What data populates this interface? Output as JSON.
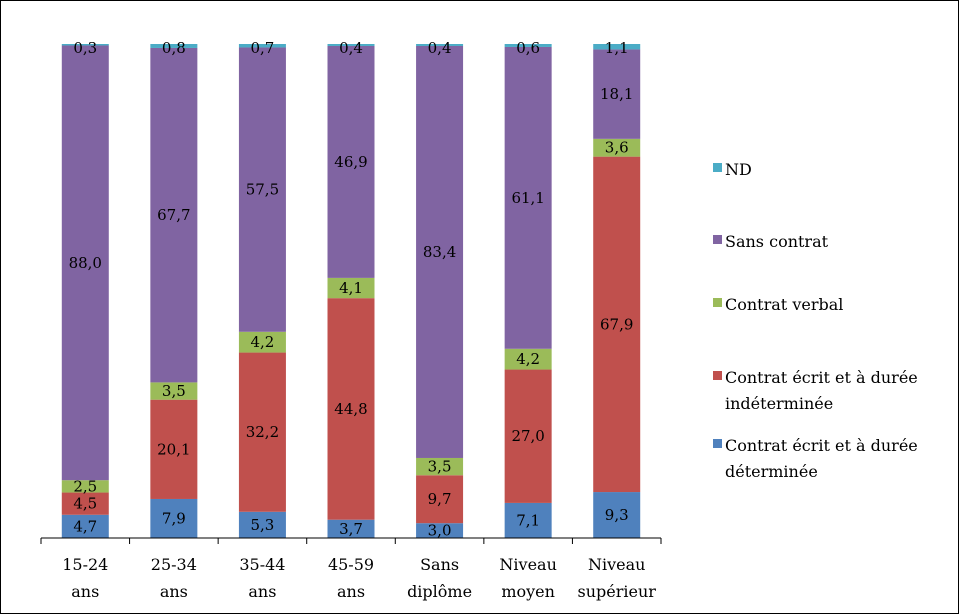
{
  "chart_data": {
    "type": "bar",
    "stacked": true,
    "percent": true,
    "title": "",
    "xlabel": "",
    "ylabel": "",
    "ylim": [
      0,
      100
    ],
    "grid": false,
    "legend_position": "right",
    "categories": [
      [
        "15-24",
        "ans"
      ],
      [
        "25-34",
        "ans"
      ],
      [
        "35-44",
        "ans"
      ],
      [
        "45-59",
        "ans"
      ],
      [
        "Sans",
        "diplôme"
      ],
      [
        "Niveau",
        "moyen"
      ],
      [
        "Niveau",
        "supérieur"
      ]
    ],
    "series": [
      {
        "name": "Contrat écrit et à durée déterminée",
        "legend_lines": [
          "Contrat écrit et à durée",
          "déterminée"
        ],
        "color": "#4F81BD",
        "values": [
          4.7,
          7.9,
          5.3,
          3.7,
          3.0,
          7.1,
          9.3
        ],
        "labels": [
          "4,7",
          "7,9",
          "5,3",
          "3,7",
          "3,0",
          "7,1",
          "9,3"
        ]
      },
      {
        "name": "Contrat écrit et à durée indéterminée",
        "legend_lines": [
          "Contrat écrit et à durée",
          "indéterminée"
        ],
        "color": "#C0504D",
        "values": [
          4.5,
          20.1,
          32.2,
          44.8,
          9.7,
          27.0,
          67.9
        ],
        "labels": [
          "4,5",
          "20,1",
          "32,2",
          "44,8",
          "9,7",
          "27,0",
          "67,9"
        ]
      },
      {
        "name": "Contrat verbal",
        "legend_lines": [
          "Contrat verbal"
        ],
        "color": "#9BBB59",
        "values": [
          2.5,
          3.5,
          4.2,
          4.1,
          3.5,
          4.2,
          3.6
        ],
        "labels": [
          "2,5",
          "3,5",
          "4,2",
          "4,1",
          "3,5",
          "4,2",
          "3,6"
        ]
      },
      {
        "name": "Sans contrat",
        "legend_lines": [
          "Sans contrat"
        ],
        "color": "#8064A2",
        "values": [
          88.0,
          67.7,
          57.5,
          46.9,
          83.4,
          61.1,
          18.1
        ],
        "labels": [
          "88,0",
          "67,7",
          "57,5",
          "46,9",
          "83,4",
          "61,1",
          "18,1"
        ]
      },
      {
        "name": "ND",
        "legend_lines": [
          "ND"
        ],
        "color": "#4BACC6",
        "values": [
          0.3,
          0.8,
          0.7,
          0.4,
          0.4,
          0.6,
          1.1
        ],
        "labels": [
          "0,3",
          "0,8",
          "0,7",
          "0,4",
          "0,4",
          "0,6",
          "1,1"
        ]
      }
    ],
    "legend_order": [
      "ND",
      "Sans contrat",
      "Contrat verbal",
      "Contrat écrit et à durée indéterminée",
      "Contrat écrit et à durée déterminée"
    ]
  }
}
